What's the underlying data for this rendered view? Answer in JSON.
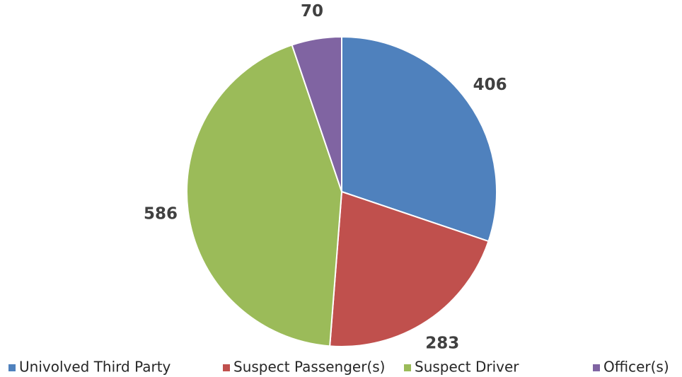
{
  "chart_data": {
    "type": "pie",
    "categories": [
      "Univolved Third Party",
      "Suspect Passenger(s)",
      "Suspect Driver",
      "Officer(s)"
    ],
    "values": [
      406,
      283,
      586,
      70
    ],
    "colors": [
      "#4f81bd",
      "#c0504d",
      "#9bbb59",
      "#8064a2"
    ],
    "legend": "bottom"
  }
}
